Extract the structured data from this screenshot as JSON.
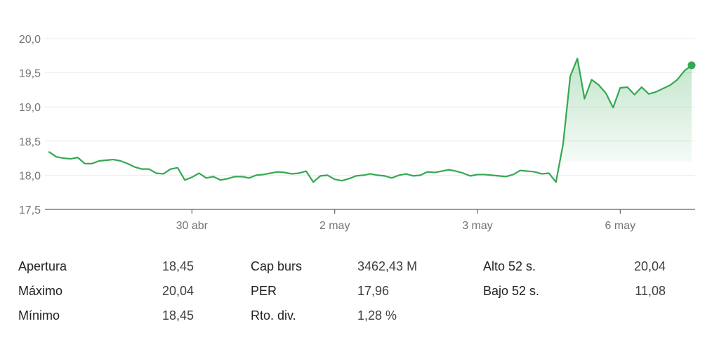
{
  "chart_data": {
    "type": "area",
    "y_ticks": [
      "20,0",
      "19,5",
      "19,0",
      "18,5",
      "18,0",
      "17,5"
    ],
    "y_tick_values": [
      20.0,
      19.5,
      19.0,
      18.5,
      18.0,
      17.5
    ],
    "ylim": [
      17.5,
      20.0
    ],
    "x_tick_labels": [
      "30 abr",
      "2 may",
      "3 may",
      "6 may"
    ],
    "x_tick_index": [
      20,
      40,
      60,
      80
    ],
    "grid": true,
    "line_color": "#34a853",
    "fill_color": "#34a853",
    "values": [
      18.34,
      18.27,
      18.25,
      18.24,
      18.26,
      18.17,
      18.17,
      18.21,
      18.22,
      18.23,
      18.21,
      18.17,
      18.12,
      18.09,
      18.09,
      18.03,
      18.02,
      18.09,
      18.11,
      17.93,
      17.97,
      18.03,
      17.96,
      17.98,
      17.93,
      17.95,
      17.98,
      17.98,
      17.96,
      18.0,
      18.01,
      18.03,
      18.05,
      18.04,
      18.02,
      18.03,
      18.06,
      17.9,
      17.99,
      18.0,
      17.94,
      17.92,
      17.95,
      17.99,
      18.0,
      18.02,
      18.0,
      17.99,
      17.96,
      18.0,
      18.02,
      17.99,
      18.0,
      18.05,
      18.04,
      18.06,
      18.08,
      18.06,
      18.03,
      17.99,
      18.01,
      18.01,
      18.0,
      17.99,
      17.98,
      18.01,
      18.07,
      18.06,
      18.05,
      18.02,
      18.03,
      17.9,
      18.46,
      19.45,
      19.71,
      19.12,
      19.4,
      19.32,
      19.2,
      18.99,
      19.28,
      19.29,
      19.18,
      19.29,
      19.19,
      19.22,
      19.27,
      19.32,
      19.4,
      19.53,
      19.61
    ]
  },
  "stats": {
    "col1": [
      {
        "label": "Apertura",
        "value": "18,45"
      },
      {
        "label": "Máximo",
        "value": "20,04"
      },
      {
        "label": "Mínimo",
        "value": "18,45"
      }
    ],
    "col2": [
      {
        "label": "Cap burs",
        "value": "3462,43 M"
      },
      {
        "label": "PER",
        "value": "17,96"
      },
      {
        "label": "Rto. div.",
        "value": "1,28 %"
      }
    ],
    "col3": [
      {
        "label": "Alto 52 s.",
        "value": "20,04"
      },
      {
        "label": "Bajo 52 s.",
        "value": "11,08"
      }
    ]
  }
}
